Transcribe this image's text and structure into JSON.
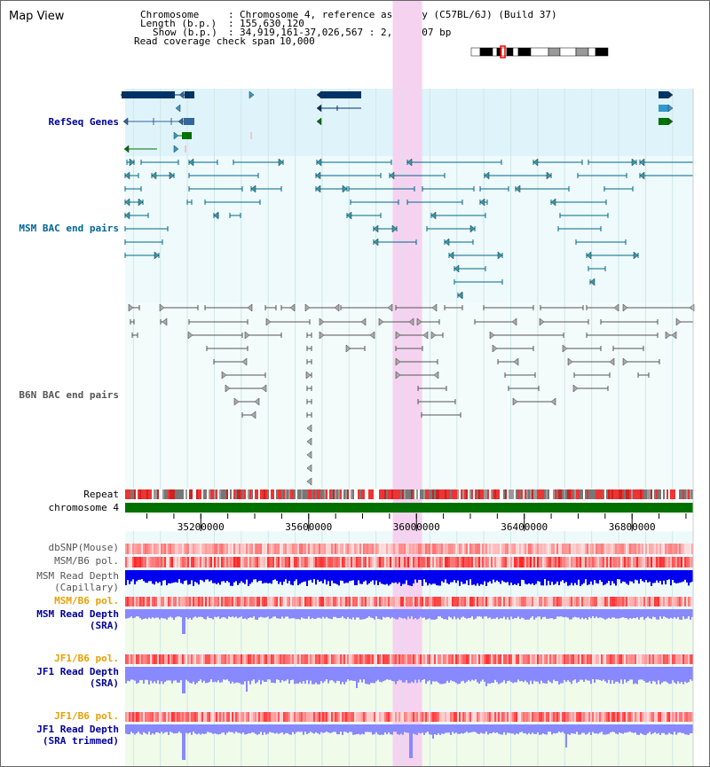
{
  "view_title": "Map View",
  "header": {
    "chromosome_label": "Chromosome",
    "chromosome_value": "Chromosome 4, reference assembly (C57BL/6J) (Build 37)",
    "length_label": "Length (b.p.)",
    "length_value": "155,630,120",
    "show_label": "Show (b.p.)",
    "show_value": "34,919,161-37,026,567 : 2,107,407 bp",
    "coverage_label": "Read coverage check span",
    "coverage_value": "10,000"
  },
  "tracks": {
    "refseq": "RefSeq Genes",
    "msm_bac": "MSM BAC end pairs",
    "b6n_bac": "B6N BAC end pairs",
    "repeat": "Repeat",
    "chromosome": "chromosome 4",
    "dbsnp": "dbSNP(Mouse)",
    "msm_b6_pol_1": "MSM/B6 pol.",
    "msm_depth_cap_1": "MSM Read Depth",
    "msm_depth_cap_2": "(Capillary)",
    "msm_b6_pol_2": "MSM/B6 pol.",
    "msm_depth_sra_1": "MSM Read Depth",
    "msm_depth_sra_2": "(SRA)",
    "jf1_b6_pol_1": "JF1/B6 pol.",
    "jf1_depth_sra_1": "JF1 Read Depth",
    "jf1_depth_sra_2": "(SRA)",
    "jf1_b6_pol_2": "JF1/B6 pol.",
    "jf1_depth_trim_1": "JF1 Read Depth",
    "jf1_depth_trim_2": "(SRA trimmed)"
  },
  "axis": {
    "ticks": [
      "35200000",
      "35600000",
      "36000000",
      "36400000",
      "36800000"
    ],
    "tick_values": [
      35200000,
      35600000,
      36000000,
      36400000,
      36800000
    ],
    "range": [
      34919161,
      37026567
    ],
    "highlight_range": [
      35912000,
      36021000
    ]
  },
  "colors": {
    "refseq_bg": "#dff3fb",
    "msm_bg": "#eefafc",
    "b6n_bg": "#f4fbfb",
    "highlight": "#f5d3f0",
    "chromosome_bar": "#007000",
    "depth_cap": "#0000ee",
    "depth_sra": "#8888ff",
    "sra_bg": "#f1fbea"
  }
}
